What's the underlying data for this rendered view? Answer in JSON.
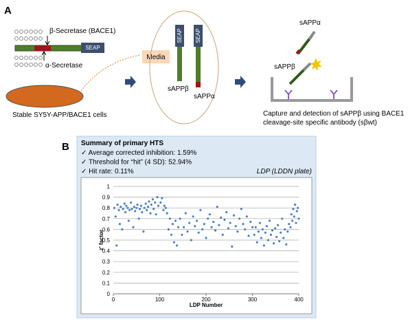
{
  "panel_a": {
    "label": "A",
    "beta_secretase": "β-Secretase (BACE1)",
    "alpha_secretase": "α-Secretase",
    "seap": "SEAP",
    "cells": "Stable SY5Y-APP/BACE1 cells",
    "media": "Media",
    "sappb": "sAPPβ",
    "sappa": "sAPPα",
    "caption": [
      "Capture and detection of sAPPβ using BACE1",
      "cleavage-site specific antibody (sβwt)"
    ]
  },
  "panel_b": {
    "label": "B",
    "title": "Summary of primary HTS",
    "items": [
      "✓ Average corrected inhibition: 1.59%",
      "✓ Threshold for “hit” (4 SD): 52.94%",
      "✓ Hit rate: 0.11%"
    ],
    "plate_note": "LDP (LDDN plate)"
  },
  "chart_data": {
    "type": "scatter",
    "x_label": "LDP Number",
    "y_label": "z' factor",
    "color": "#4f81bd",
    "grid": true,
    "xlim": [
      0,
      400
    ],
    "xticks": [
      0,
      100,
      200,
      300,
      400
    ],
    "ylim": [
      0,
      1
    ],
    "yticks": [
      0,
      0.1,
      0.2,
      0.3,
      0.4,
      0.5,
      0.6,
      0.7,
      0.8,
      0.9,
      1
    ],
    "x": [
      2,
      5,
      7,
      9,
      12,
      14,
      16,
      19,
      21,
      24,
      26,
      28,
      31,
      33,
      35,
      38,
      40,
      43,
      45,
      47,
      50,
      52,
      55,
      57,
      60,
      62,
      65,
      67,
      70,
      72,
      75,
      77,
      80,
      82,
      85,
      87,
      90,
      92,
      95,
      97,
      102,
      105,
      108,
      110,
      113,
      116,
      119,
      122,
      125,
      128,
      131,
      134,
      137,
      140,
      144,
      148,
      152,
      156,
      160,
      164,
      168,
      172,
      176,
      180,
      184,
      188,
      192,
      196,
      200,
      204,
      208,
      212,
      216,
      220,
      224,
      228,
      232,
      236,
      240,
      244,
      248,
      252,
      256,
      260,
      264,
      268,
      272,
      276,
      280,
      284,
      288,
      292,
      296,
      300,
      304,
      307,
      310,
      313,
      316,
      319,
      322,
      325,
      328,
      331,
      334,
      337,
      340,
      343,
      346,
      349,
      352,
      355,
      358,
      361,
      364,
      367,
      370,
      373,
      376,
      379,
      382,
      384,
      386,
      388,
      390,
      392,
      394,
      396,
      398,
      400
    ],
    "values": [
      0.8,
      0.72,
      0.45,
      0.83,
      0.78,
      0.65,
      0.81,
      0.6,
      0.79,
      0.84,
      0.76,
      0.82,
      0.8,
      0.68,
      0.78,
      0.85,
      0.79,
      0.62,
      0.81,
      0.77,
      0.8,
      0.83,
      0.7,
      0.79,
      0.82,
      0.76,
      0.58,
      0.8,
      0.84,
      0.78,
      0.81,
      0.86,
      0.75,
      0.83,
      0.88,
      0.79,
      0.85,
      0.74,
      0.9,
      0.82,
      0.85,
      0.89,
      0.78,
      0.82,
      0.8,
      0.75,
      0.6,
      0.7,
      0.55,
      0.65,
      0.48,
      0.68,
      0.45,
      0.62,
      0.7,
      0.55,
      0.62,
      0.75,
      0.58,
      0.66,
      0.5,
      0.72,
      0.63,
      0.68,
      0.57,
      0.78,
      0.6,
      0.65,
      0.52,
      0.7,
      0.74,
      0.62,
      0.67,
      0.59,
      0.81,
      0.64,
      0.71,
      0.55,
      0.69,
      0.76,
      0.61,
      0.66,
      0.44,
      0.73,
      0.63,
      0.58,
      0.7,
      0.79,
      0.65,
      0.6,
      0.72,
      0.54,
      0.67,
      0.62,
      0.55,
      0.62,
      0.48,
      0.58,
      0.66,
      0.52,
      0.6,
      0.45,
      0.57,
      0.63,
      0.5,
      0.68,
      0.55,
      0.59,
      0.47,
      0.61,
      0.53,
      0.64,
      0.49,
      0.57,
      0.7,
      0.52,
      0.6,
      0.46,
      0.58,
      0.65,
      0.62,
      0.74,
      0.68,
      0.79,
      0.72,
      0.83,
      0.66,
      0.77,
      0.8,
      0.7
    ]
  }
}
